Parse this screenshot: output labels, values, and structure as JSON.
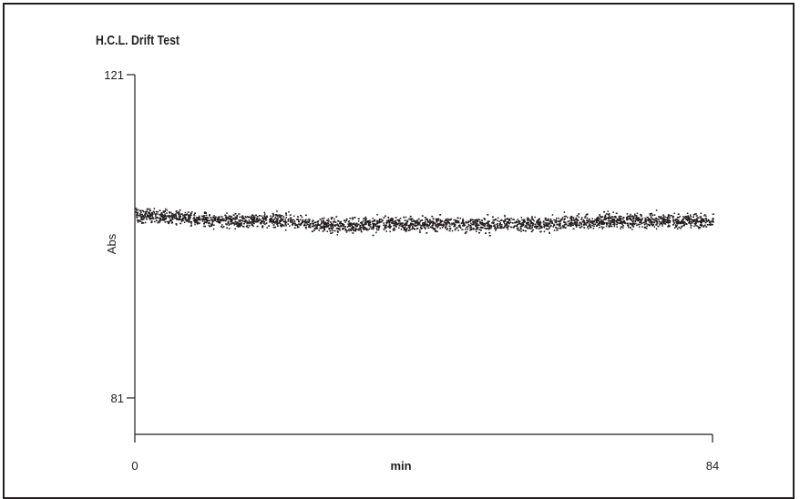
{
  "chart_data": {
    "type": "scatter",
    "title": "H.C.L. Drift Test",
    "xlabel": "min",
    "ylabel": "Abs",
    "xlim": [
      0,
      84
    ],
    "ylim": [
      81,
      121
    ],
    "x_ticks": [
      "0",
      "84"
    ],
    "y_ticks": [
      "121",
      "81"
    ],
    "grid": false,
    "legend": "none",
    "point_color": "#231f20",
    "trend": {
      "x": [
        0,
        5,
        10,
        15,
        20,
        25,
        30,
        35,
        40,
        45,
        50,
        55,
        60,
        65,
        70,
        75,
        80,
        84
      ],
      "y": [
        103.8,
        103.5,
        103.1,
        103.0,
        103.1,
        102.6,
        102.4,
        102.6,
        102.6,
        102.7,
        102.4,
        102.7,
        102.6,
        102.9,
        103.0,
        103.0,
        103.0,
        102.9
      ]
    },
    "spread": 1.5
  }
}
